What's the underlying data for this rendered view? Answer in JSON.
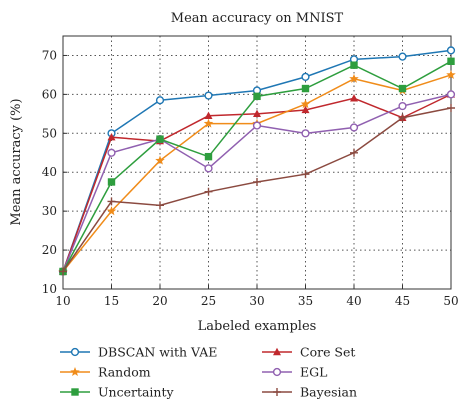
{
  "chart_data": {
    "type": "line",
    "title": "Mean accuracy on MNIST",
    "xlabel": "Labeled examples",
    "ylabel": "Mean accuracy (%)",
    "x": [
      10,
      15,
      20,
      25,
      30,
      35,
      40,
      45,
      50
    ],
    "xlim": [
      10,
      50
    ],
    "ylim": [
      10,
      75
    ],
    "xticks": [
      10,
      15,
      20,
      25,
      30,
      35,
      40,
      45,
      50
    ],
    "yticks": [
      10,
      20,
      30,
      40,
      50,
      60,
      70
    ],
    "grid": true,
    "legend_position": "bottom",
    "series": [
      {
        "name": "DBSCAN with VAE",
        "color": "#1f77b4",
        "marker": "circle",
        "values": [
          14.5,
          50.0,
          58.5,
          59.7,
          61.0,
          64.5,
          69.0,
          69.7,
          71.3
        ]
      },
      {
        "name": "Core Set",
        "color": "#c0282d",
        "marker": "triangle",
        "values": [
          14.5,
          49.0,
          48.0,
          54.5,
          55.0,
          56.0,
          59.0,
          54.0,
          60.0
        ]
      },
      {
        "name": "Random",
        "color": "#f08c1a",
        "marker": "star",
        "values": [
          14.5,
          30.0,
          43.0,
          52.5,
          52.5,
          57.5,
          64.0,
          61.0,
          65.0
        ]
      },
      {
        "name": "EGL",
        "color": "#9060b0",
        "marker": "circle",
        "values": [
          14.5,
          45.0,
          48.5,
          41.0,
          52.0,
          50.0,
          51.5,
          57.0,
          60.0
        ]
      },
      {
        "name": "Uncertainty",
        "color": "#2e9e3e",
        "marker": "square",
        "values": [
          14.5,
          37.5,
          48.5,
          44.0,
          59.5,
          61.5,
          67.5,
          61.5,
          68.5
        ]
      },
      {
        "name": "Bayesian",
        "color": "#8b4a40",
        "marker": "plus",
        "values": [
          14.5,
          32.5,
          31.5,
          35.0,
          37.5,
          39.5,
          45.0,
          54.0,
          56.5
        ]
      }
    ]
  }
}
